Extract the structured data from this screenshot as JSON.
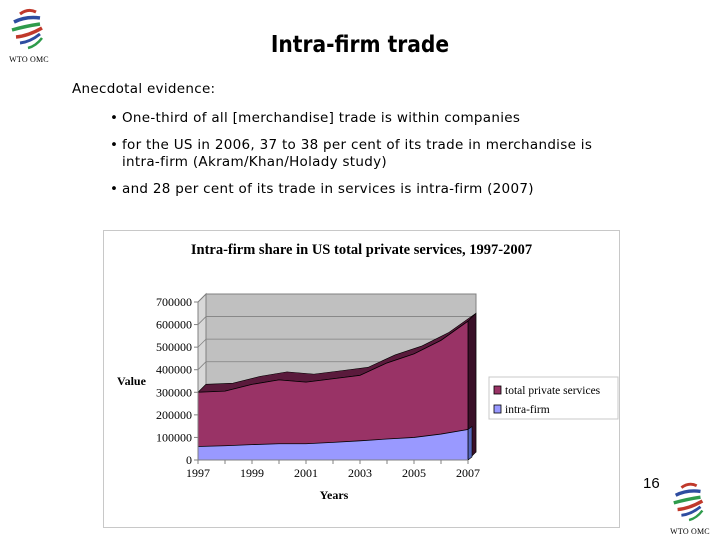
{
  "slide": {
    "title": "Intra-firm trade",
    "intro": "Anecdotal evidence:",
    "bullets": [
      "One-third of all [merchandise] trade is within companies",
      "for the US in 2006, 37 to 38 per cent of its trade in merchandise is intra-firm (Akram/Khan/Holady study)",
      "and 28 per cent of its trade in services is intra-firm (2007)"
    ],
    "page_number": "16",
    "logo_caption": "WTO OMC"
  },
  "colors": {
    "total_private_services": "#993366",
    "intra_firm": "#9999ff",
    "plot_wall": "#c0c0c0"
  },
  "chart_data": {
    "type": "area",
    "title": "Intra-firm share in US total private services, 1997-2007",
    "xlabel": "Years",
    "ylabel": "Value",
    "x": [
      1997,
      1998,
      1999,
      2000,
      2001,
      2002,
      2003,
      2004,
      2005,
      2006,
      2007
    ],
    "x_tick_labels": [
      "1997",
      "1999",
      "2001",
      "2003",
      "2005",
      "2007"
    ],
    "y_tick_labels": [
      "0",
      "100000",
      "200000",
      "300000",
      "400000",
      "500000",
      "600000",
      "700000"
    ],
    "ylim": [
      0,
      700000
    ],
    "grid": true,
    "legend_position": "right",
    "series": [
      {
        "name": "total private services",
        "values": [
          300000,
          305000,
          335000,
          355000,
          345000,
          360000,
          375000,
          430000,
          470000,
          530000,
          615000
        ]
      },
      {
        "name": "intra-firm",
        "values": [
          60000,
          63000,
          68000,
          72000,
          72000,
          78000,
          85000,
          93000,
          100000,
          115000,
          135000
        ]
      }
    ]
  }
}
